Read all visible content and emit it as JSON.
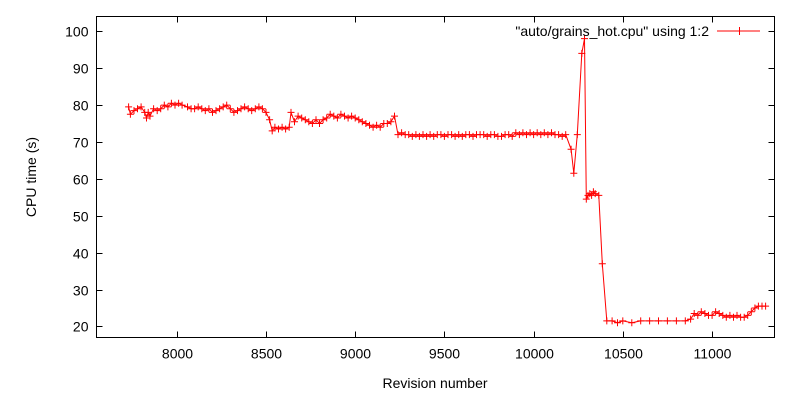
{
  "chart_data": {
    "type": "line",
    "title": "",
    "xlabel": "Revision number",
    "ylabel": "CPU time (s)",
    "xlim": [
      7550,
      11350
    ],
    "ylim": [
      17,
      104
    ],
    "grid": false,
    "legend_position": "top-right",
    "x_ticks": [
      8000,
      8500,
      9000,
      9500,
      10000,
      10500,
      11000
    ],
    "y_ticks": [
      20,
      30,
      40,
      50,
      60,
      70,
      80,
      90,
      100
    ],
    "series": [
      {
        "name": "\"auto/grains_hot.cpu\" using 1:2",
        "color": "#ff0000",
        "marker": "plus",
        "points": [
          [
            7730,
            79.5
          ],
          [
            7740,
            77.5
          ],
          [
            7760,
            78.5
          ],
          [
            7780,
            79
          ],
          [
            7800,
            79.5
          ],
          [
            7820,
            78
          ],
          [
            7830,
            76.5
          ],
          [
            7840,
            78
          ],
          [
            7850,
            77
          ],
          [
            7870,
            79
          ],
          [
            7890,
            78.5
          ],
          [
            7910,
            79
          ],
          [
            7930,
            80
          ],
          [
            7950,
            79.5
          ],
          [
            7970,
            80.5
          ],
          [
            7990,
            80
          ],
          [
            8010,
            80.5
          ],
          [
            8030,
            80
          ],
          [
            8060,
            79.5
          ],
          [
            8080,
            79
          ],
          [
            8100,
            79
          ],
          [
            8120,
            79.5
          ],
          [
            8140,
            79
          ],
          [
            8160,
            78.5
          ],
          [
            8180,
            79
          ],
          [
            8200,
            78
          ],
          [
            8220,
            78.5
          ],
          [
            8240,
            79
          ],
          [
            8260,
            79.5
          ],
          [
            8280,
            80
          ],
          [
            8300,
            79
          ],
          [
            8320,
            78
          ],
          [
            8340,
            78.5
          ],
          [
            8360,
            79
          ],
          [
            8380,
            79.5
          ],
          [
            8400,
            79
          ],
          [
            8420,
            78.5
          ],
          [
            8440,
            79
          ],
          [
            8460,
            79.5
          ],
          [
            8480,
            79
          ],
          [
            8500,
            78
          ],
          [
            8520,
            76
          ],
          [
            8535,
            73
          ],
          [
            8550,
            74
          ],
          [
            8570,
            73.5
          ],
          [
            8590,
            74
          ],
          [
            8610,
            73.5
          ],
          [
            8630,
            74
          ],
          [
            8640,
            78
          ],
          [
            8660,
            75.5
          ],
          [
            8680,
            77
          ],
          [
            8700,
            76.5
          ],
          [
            8720,
            76
          ],
          [
            8740,
            75.5
          ],
          [
            8760,
            75
          ],
          [
            8780,
            76
          ],
          [
            8800,
            75
          ],
          [
            8820,
            76
          ],
          [
            8840,
            76.5
          ],
          [
            8860,
            77.5
          ],
          [
            8880,
            77
          ],
          [
            8900,
            76.5
          ],
          [
            8920,
            77.5
          ],
          [
            8940,
            77
          ],
          [
            8960,
            76.5
          ],
          [
            8980,
            77
          ],
          [
            9000,
            76.5
          ],
          [
            9020,
            76
          ],
          [
            9040,
            75.5
          ],
          [
            9060,
            75
          ],
          [
            9080,
            74.5
          ],
          [
            9100,
            74
          ],
          [
            9120,
            74.5
          ],
          [
            9140,
            74
          ],
          [
            9160,
            75
          ],
          [
            9180,
            75
          ],
          [
            9200,
            75.5
          ],
          [
            9220,
            77
          ],
          [
            9240,
            72
          ],
          [
            9260,
            72.5
          ],
          [
            9280,
            72
          ],
          [
            9300,
            72
          ],
          [
            9320,
            71.5
          ],
          [
            9340,
            72
          ],
          [
            9360,
            71.5
          ],
          [
            9380,
            72
          ],
          [
            9400,
            71.5
          ],
          [
            9420,
            72
          ],
          [
            9440,
            71.5
          ],
          [
            9460,
            72
          ],
          [
            9480,
            72
          ],
          [
            9500,
            71.5
          ],
          [
            9520,
            72
          ],
          [
            9540,
            72
          ],
          [
            9560,
            71.5
          ],
          [
            9580,
            72
          ],
          [
            9600,
            71.5
          ],
          [
            9620,
            72
          ],
          [
            9640,
            72
          ],
          [
            9660,
            71.5
          ],
          [
            9680,
            72
          ],
          [
            9700,
            72
          ],
          [
            9720,
            72
          ],
          [
            9740,
            71.5
          ],
          [
            9760,
            72
          ],
          [
            9780,
            72
          ],
          [
            9800,
            71.5
          ],
          [
            9820,
            71.5
          ],
          [
            9840,
            72
          ],
          [
            9860,
            72
          ],
          [
            9880,
            71.5
          ],
          [
            9900,
            72.5
          ],
          [
            9920,
            72
          ],
          [
            9940,
            72.5
          ],
          [
            9960,
            72
          ],
          [
            9980,
            72.5
          ],
          [
            10000,
            72
          ],
          [
            10020,
            72.5
          ],
          [
            10040,
            72
          ],
          [
            10060,
            72.5
          ],
          [
            10080,
            72
          ],
          [
            10100,
            72.5
          ],
          [
            10120,
            72
          ],
          [
            10140,
            72
          ],
          [
            10160,
            71.5
          ],
          [
            10180,
            72
          ],
          [
            10210,
            68
          ],
          [
            10225,
            61.5
          ],
          [
            10245,
            72
          ],
          [
            10270,
            94
          ],
          [
            10285,
            98
          ],
          [
            10295,
            54.5
          ],
          [
            10305,
            55.5
          ],
          [
            10315,
            56
          ],
          [
            10325,
            55.5
          ],
          [
            10335,
            56.5
          ],
          [
            10345,
            56
          ],
          [
            10365,
            55.5
          ],
          [
            10385,
            37
          ],
          [
            10410,
            21.5
          ],
          [
            10440,
            21.5
          ],
          [
            10470,
            21
          ],
          [
            10500,
            21.5
          ],
          [
            10550,
            21
          ],
          [
            10600,
            21.5
          ],
          [
            10650,
            21.5
          ],
          [
            10700,
            21.5
          ],
          [
            10750,
            21.5
          ],
          [
            10800,
            21.5
          ],
          [
            10850,
            21.5
          ],
          [
            10880,
            22
          ],
          [
            10900,
            23.5
          ],
          [
            10920,
            23
          ],
          [
            10940,
            24
          ],
          [
            10960,
            23.5
          ],
          [
            10980,
            23
          ],
          [
            11000,
            23
          ],
          [
            11020,
            24
          ],
          [
            11040,
            23.5
          ],
          [
            11060,
            23
          ],
          [
            11080,
            22.5
          ],
          [
            11100,
            23
          ],
          [
            11120,
            22.5
          ],
          [
            11140,
            23
          ],
          [
            11160,
            22.5
          ],
          [
            11180,
            22.5
          ],
          [
            11200,
            23
          ],
          [
            11220,
            24
          ],
          [
            11240,
            25
          ],
          [
            11260,
            25.5
          ],
          [
            11280,
            25.5
          ],
          [
            11300,
            25.5
          ]
        ]
      }
    ]
  }
}
